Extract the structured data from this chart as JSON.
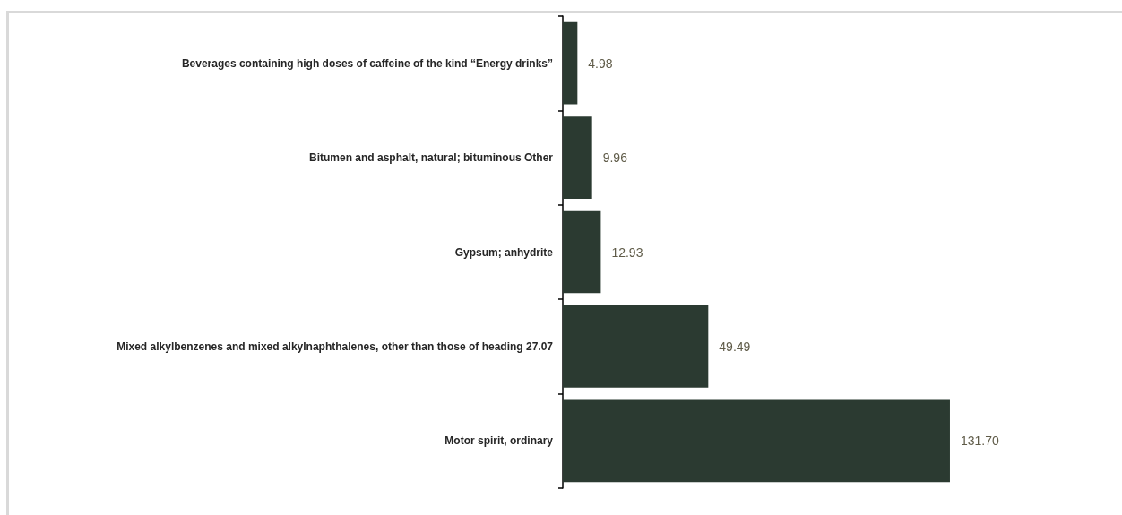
{
  "chart_data": {
    "type": "bar",
    "orientation": "horizontal",
    "categories": [
      "Beverages containing high doses of caffeine of the kind “Energy drinks”",
      "Bitumen and asphalt, natural; bituminous Other",
      "Gypsum; anhydrite",
      "Mixed alkylbenzenes and mixed alkylnaphthalenes, other than those of heading 27.07",
      "Motor spirit, ordinary"
    ],
    "values": [
      4.98,
      9.96,
      12.93,
      49.49,
      131.7
    ],
    "value_labels": [
      "4.98",
      "9.96",
      "12.93",
      "49.49",
      "131.70"
    ],
    "color": "#2b3a31",
    "tick_labels": "y"
  }
}
